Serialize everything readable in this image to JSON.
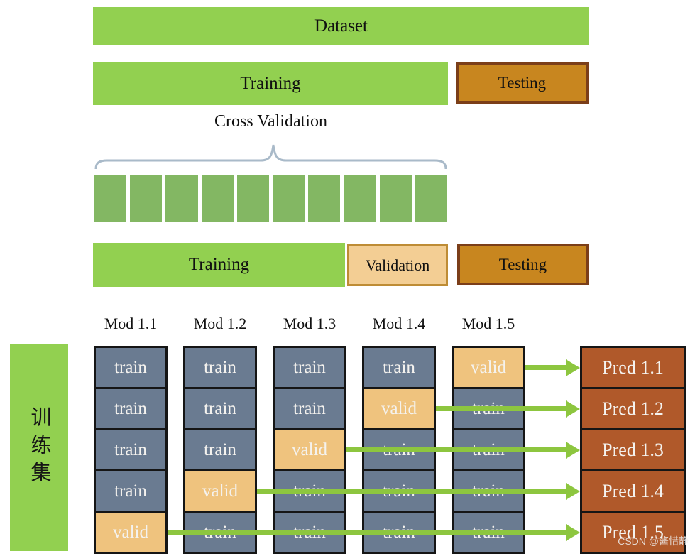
{
  "overview": {
    "dataset_label": "Dataset",
    "training_label": "Training",
    "testing_label": "Testing"
  },
  "cross_validation": {
    "title": "Cross Validation",
    "num_segments": 10
  },
  "split": {
    "training_label": "Training",
    "validation_label": "Validation",
    "testing_label": "Testing"
  },
  "folds": {
    "left_label": "训练集",
    "columns": [
      {
        "header": "Mod 1.1",
        "cells": [
          "train",
          "train",
          "train",
          "train",
          "valid"
        ]
      },
      {
        "header": "Mod 1.2",
        "cells": [
          "train",
          "train",
          "train",
          "valid",
          "train"
        ]
      },
      {
        "header": "Mod 1.3",
        "cells": [
          "train",
          "train",
          "valid",
          "train",
          "train"
        ]
      },
      {
        "header": "Mod 1.4",
        "cells": [
          "train",
          "valid",
          "train",
          "train",
          "train"
        ]
      },
      {
        "header": "Mod 1.5",
        "cells": [
          "valid",
          "train",
          "train",
          "train",
          "train"
        ]
      }
    ],
    "predictions": [
      "Pred 1.1",
      "Pred 1.2",
      "Pred 1.3",
      "Pred 1.4",
      "Pred 1.5"
    ]
  },
  "watermark": "CSDN @酱惜静",
  "colors": {
    "green": "#92D050",
    "segment_green": "#83B763",
    "testing_fill": "#C8861F",
    "testing_border": "#7B3E19",
    "validation_fill": "#F3CE94",
    "validation_border": "#BE8C35",
    "train_cell": "#6A7B91",
    "valid_cell": "#EFC37E",
    "pred_fill": "#B0592A",
    "arrow_green": "#8DC63F",
    "brace": "#A9BAC9"
  }
}
